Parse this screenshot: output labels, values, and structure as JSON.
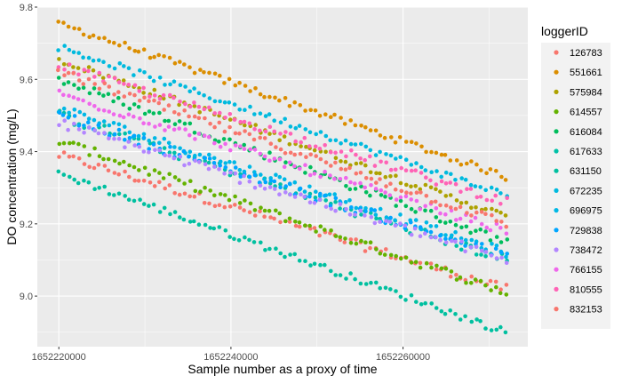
{
  "chart_data": {
    "type": "scatter",
    "title": "",
    "xlabel": "Sample number as a proxy of time",
    "ylabel": "DO concentration (mg/L)",
    "xlim": [
      1652217500,
      1652274500
    ],
    "ylim": [
      8.86,
      9.8
    ],
    "x_ticks": [
      1652220000,
      1652240000,
      1652260000
    ],
    "x_tick_labels": [
      "1652220000",
      "1652240000",
      "1652260000"
    ],
    "y_ticks": [
      9.0,
      9.2,
      9.4,
      9.6,
      9.8
    ],
    "y_tick_labels": [
      "9.0",
      "9.2",
      "9.4",
      "9.6",
      "9.8"
    ],
    "grid": true,
    "legend": {
      "title": "loggerID",
      "position": "right"
    },
    "x_start": 1652220000,
    "x_end": 1652272000,
    "series": [
      {
        "name": "126783",
        "color": "#F8766D",
        "start": 9.39,
        "end": 9.02,
        "noise": 0.012
      },
      {
        "name": "551661",
        "color": "#DB8E00",
        "start": 9.755,
        "end": 9.33,
        "noise": 0.01
      },
      {
        "name": "575984",
        "color": "#AEA200",
        "start": 9.655,
        "end": 9.22,
        "noise": 0.01
      },
      {
        "name": "614557",
        "color": "#64B200",
        "start": 9.43,
        "end": 9.01,
        "noise": 0.012
      },
      {
        "name": "616084",
        "color": "#00BD5C",
        "start": 9.6,
        "end": 9.15,
        "noise": 0.012
      },
      {
        "name": "617633",
        "color": "#00C1A7",
        "start": 9.5,
        "end": 9.1,
        "noise": 0.014
      },
      {
        "name": "631150",
        "color": "#00C0A0",
        "start": 9.34,
        "end": 8.9,
        "noise": 0.01
      },
      {
        "name": "672235",
        "color": "#00BADE",
        "start": 9.69,
        "end": 9.28,
        "noise": 0.01
      },
      {
        "name": "696975",
        "color": "#00B8E5",
        "start": 9.52,
        "end": 9.12,
        "noise": 0.012
      },
      {
        "name": "729838",
        "color": "#00A6FF",
        "start": 9.5,
        "end": 9.11,
        "noise": 0.014
      },
      {
        "name": "738472",
        "color": "#B385FF",
        "start": 9.48,
        "end": 9.1,
        "noise": 0.014
      },
      {
        "name": "766155",
        "color": "#EF67EB",
        "start": 9.56,
        "end": 9.18,
        "noise": 0.012
      },
      {
        "name": "810555",
        "color": "#FF63B6",
        "start": 9.64,
        "end": 9.26,
        "noise": 0.012
      },
      {
        "name": "832153",
        "color": "#F8766D",
        "start": 9.62,
        "end": 9.2,
        "noise": 0.012
      }
    ]
  }
}
